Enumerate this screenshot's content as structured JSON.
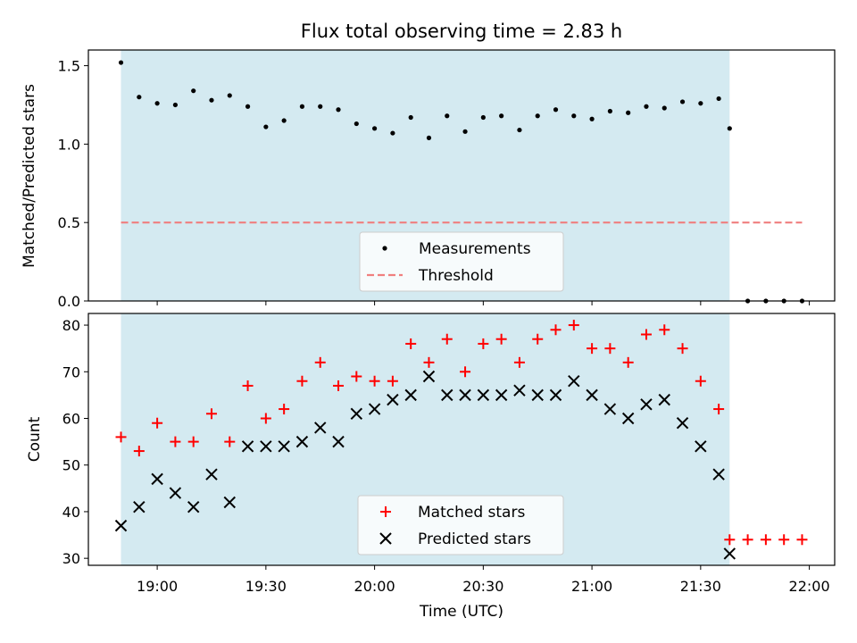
{
  "figure": {
    "title": "Flux total observing time = 2.83 h",
    "xlabel": "Time (UTC)",
    "shaded_color": "#d4eaf1"
  },
  "chart_data": [
    {
      "type": "scatter",
      "panel": "top",
      "title": "Flux total observing time = 2.83 h",
      "xlabel": "Time (UTC)",
      "ylabel": "Matched/Predicted stars",
      "xlim": [
        "18:41",
        "22:07"
      ],
      "ylim": [
        0.0,
        1.6
      ],
      "yticks": [
        0.0,
        0.5,
        1.0,
        1.5
      ],
      "ytick_labels": [
        "0.0",
        "0.5",
        "1.0",
        "1.5"
      ],
      "grid": false,
      "legend": "lower-center",
      "shaded_interval": [
        "18:50",
        "21:38"
      ],
      "series": [
        {
          "name": "Measurements",
          "kind": "scatter",
          "marker": "dot",
          "color": "#000000",
          "x": [
            "18:50",
            "18:55",
            "19:00",
            "19:05",
            "19:10",
            "19:15",
            "19:20",
            "19:25",
            "19:30",
            "19:35",
            "19:40",
            "19:45",
            "19:50",
            "19:55",
            "20:00",
            "20:05",
            "20:10",
            "20:15",
            "20:20",
            "20:25",
            "20:30",
            "20:35",
            "20:40",
            "20:45",
            "20:50",
            "20:55",
            "21:00",
            "21:05",
            "21:10",
            "21:15",
            "21:20",
            "21:25",
            "21:30",
            "21:35",
            "21:38",
            "21:43",
            "21:48",
            "21:53",
            "21:58"
          ],
          "y": [
            1.52,
            1.3,
            1.26,
            1.25,
            1.34,
            1.28,
            1.31,
            1.24,
            1.11,
            1.15,
            1.24,
            1.24,
            1.22,
            1.13,
            1.1,
            1.07,
            1.17,
            1.04,
            1.18,
            1.08,
            1.17,
            1.18,
            1.09,
            1.18,
            1.22,
            1.18,
            1.16,
            1.21,
            1.2,
            1.24,
            1.23,
            1.27,
            1.26,
            1.29,
            1.1,
            0.0,
            0.0,
            0.0,
            0.0
          ]
        },
        {
          "name": "Threshold",
          "kind": "line",
          "style": "dashed",
          "color": "#f07f7f",
          "x": [
            "18:50",
            "21:58"
          ],
          "y": [
            0.5,
            0.5
          ]
        }
      ]
    },
    {
      "type": "scatter",
      "panel": "bottom",
      "xlabel": "Time (UTC)",
      "ylabel": "Count",
      "xlim": [
        "18:41",
        "22:07"
      ],
      "ylim": [
        28.5,
        82.5
      ],
      "yticks": [
        30,
        40,
        50,
        60,
        70,
        80
      ],
      "ytick_labels": [
        "30",
        "40",
        "50",
        "60",
        "70",
        "80"
      ],
      "xticks": [
        "19:00",
        "19:30",
        "20:00",
        "20:30",
        "21:00",
        "21:30",
        "22:00"
      ],
      "xtick_labels": [
        "19:00",
        "19:30",
        "20:00",
        "20:30",
        "21:00",
        "21:30",
        "22:00"
      ],
      "grid": false,
      "legend": "lower-center",
      "shaded_interval": [
        "18:50",
        "21:38"
      ],
      "series": [
        {
          "name": "Matched stars",
          "kind": "scatter",
          "marker": "plus",
          "color": "#ff0000",
          "x": [
            "18:50",
            "18:55",
            "19:00",
            "19:05",
            "19:10",
            "19:15",
            "19:20",
            "19:25",
            "19:30",
            "19:35",
            "19:40",
            "19:45",
            "19:50",
            "19:55",
            "20:00",
            "20:05",
            "20:10",
            "20:15",
            "20:20",
            "20:25",
            "20:30",
            "20:35",
            "20:40",
            "20:45",
            "20:50",
            "20:55",
            "21:00",
            "21:05",
            "21:10",
            "21:15",
            "21:20",
            "21:25",
            "21:30",
            "21:35",
            "21:38",
            "21:43",
            "21:48",
            "21:53",
            "21:58"
          ],
          "y": [
            56,
            53,
            59,
            55,
            55,
            61,
            55,
            67,
            60,
            62,
            68,
            72,
            67,
            69,
            68,
            68,
            76,
            72,
            77,
            70,
            76,
            77,
            72,
            77,
            79,
            80,
            75,
            75,
            72,
            78,
            79,
            75,
            68,
            62,
            34,
            34,
            34,
            34,
            34
          ]
        },
        {
          "name": "Predicted stars",
          "kind": "scatter",
          "marker": "x",
          "color": "#000000",
          "x": [
            "18:50",
            "18:55",
            "19:00",
            "19:05",
            "19:10",
            "19:15",
            "19:20",
            "19:25",
            "19:30",
            "19:35",
            "19:40",
            "19:45",
            "19:50",
            "19:55",
            "20:00",
            "20:05",
            "20:10",
            "20:15",
            "20:20",
            "20:25",
            "20:30",
            "20:35",
            "20:40",
            "20:45",
            "20:50",
            "20:55",
            "21:00",
            "21:05",
            "21:10",
            "21:15",
            "21:20",
            "21:25",
            "21:30",
            "21:35",
            "21:38"
          ],
          "y": [
            37,
            41,
            47,
            44,
            41,
            48,
            42,
            54,
            54,
            54,
            55,
            58,
            55,
            61,
            62,
            64,
            65,
            69,
            65,
            65,
            65,
            65,
            66,
            65,
            65,
            68,
            65,
            62,
            60,
            63,
            64,
            59,
            54,
            48,
            31
          ]
        }
      ]
    }
  ]
}
